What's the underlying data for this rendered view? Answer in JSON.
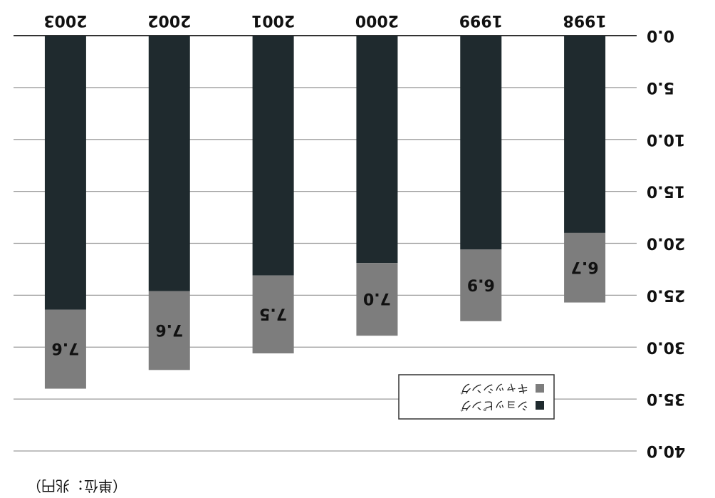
{
  "chart_data": {
    "type": "bar",
    "stacked": true,
    "orientation": "vertical",
    "rotated_180": true,
    "categories": [
      "1998",
      "1999",
      "2000",
      "2001",
      "2002",
      "2003"
    ],
    "series": [
      {
        "name": "ショッピング",
        "color": "#1f2a2e",
        "values": [
          19.0,
          20.6,
          21.9,
          23.1,
          24.6,
          26.4
        ]
      },
      {
        "name": "キャッシング",
        "color": "#7d7d7d",
        "values": [
          6.7,
          6.9,
          7.0,
          7.5,
          7.6,
          7.6
        ]
      }
    ],
    "data_labels": {
      "segment_labels": [
        "6.7",
        "6.9",
        "7.0",
        "7.5",
        "7.6",
        "7.6"
      ]
    },
    "y_axis": {
      "min": 0,
      "max": 40,
      "ticks": [
        "0.0",
        "5.0",
        "10.0",
        "15.0",
        "20.0",
        "25.0",
        "30.0",
        "35.0",
        "40.0"
      ]
    },
    "grid": true,
    "legend": {
      "position": "bottom-right",
      "entries": [
        "キャッシング",
        "ショッピング"
      ]
    },
    "unit_note": "（単位：兆円）"
  }
}
